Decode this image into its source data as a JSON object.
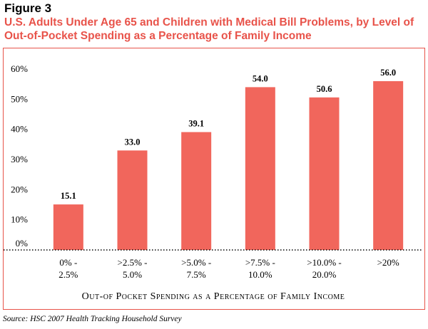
{
  "figure_label": "Figure 3",
  "title": "U.S. Adults Under Age 65 and Children with Medical Bill Problems, by Level of Out-of-Pocket Spending as a Percentage of Family Income",
  "source": "Source:  HSC 2007 Health Tracking Household Survey",
  "colors": {
    "bar": "#f1665c",
    "title": "#e8534a",
    "frame": "#e8534a"
  },
  "chart_data": {
    "type": "bar",
    "categories": [
      [
        "0% -",
        "2.5%"
      ],
      [
        ">2.5% -",
        "5.0%"
      ],
      [
        ">5.0% -",
        "7.5%"
      ],
      [
        ">7.5% -",
        "10.0%"
      ],
      [
        ">10.0% -",
        "20.0%"
      ],
      [
        ">20%"
      ]
    ],
    "values": [
      15.1,
      33.0,
      39.1,
      54.0,
      50.6,
      56.0
    ],
    "value_labels": [
      "15.1",
      "33.0",
      "39.1",
      "54.0",
      "50.6",
      "56.0"
    ],
    "y_ticks": [
      "0%",
      "10%",
      "20%",
      "30%",
      "40%",
      "50%",
      "60%"
    ],
    "ylim": [
      0,
      60
    ],
    "xlabel": "Out-of Pocket Spending as a Percentage of Family Income",
    "ylabel": "",
    "grid": false,
    "legend": "none"
  }
}
